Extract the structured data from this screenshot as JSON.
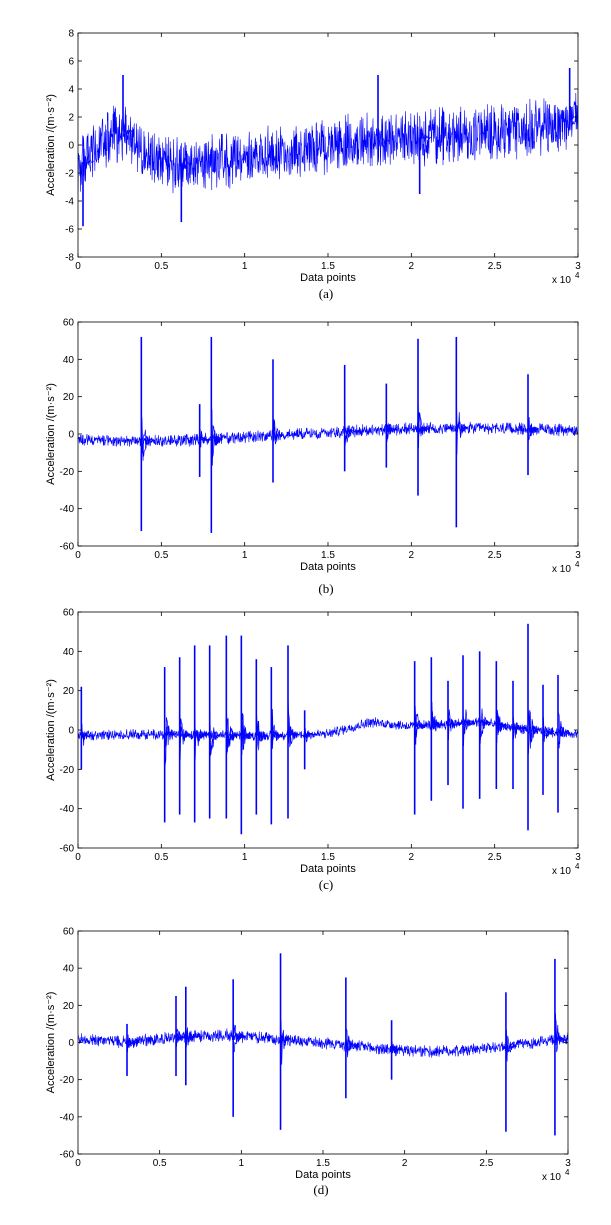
{
  "chart_data": [
    {
      "type": "line",
      "caption": "(a)",
      "xlabel": "Data points",
      "ylabel": "Acceleration /(m·s⁻²)",
      "x_multiplier": "x 10",
      "x_exponent": "4",
      "xlim": [
        0,
        3
      ],
      "ylim": [
        -8,
        8
      ],
      "xticks": [
        "0",
        "0.5",
        "1",
        "1.5",
        "2",
        "2.5",
        "3"
      ],
      "yticks": [
        "-8",
        "-6",
        "-4",
        "-2",
        "0",
        "2",
        "4",
        "6",
        "8"
      ],
      "grid": false,
      "line_color": "#0000ff",
      "series": [
        {
          "x": [
            0,
            0.1,
            0.2,
            0.27,
            0.4,
            0.5,
            0.6,
            0.7,
            0.8,
            0.9,
            1.0,
            1.2,
            1.4,
            1.6,
            1.8,
            2.0,
            2.2,
            2.4,
            2.6,
            2.8,
            2.95,
            3.0
          ],
          "y": [
            -1.5,
            -0.5,
            0.5,
            1.0,
            -0.5,
            -1.2,
            -1.4,
            -1.2,
            -1.2,
            -1.0,
            -0.8,
            -0.6,
            -0.3,
            0,
            0.3,
            0.5,
            0.6,
            0.8,
            1.0,
            1.3,
            1.8,
            2.0
          ],
          "noise_amplitude": 1.5
        }
      ],
      "spikes": [
        {
          "x": 0.03,
          "y": -5.8
        },
        {
          "x": 0.27,
          "y": 5.0
        },
        {
          "x": 0.62,
          "y": -5.5
        },
        {
          "x": 1.8,
          "y": 5.0
        },
        {
          "x": 2.05,
          "y": -3.5
        },
        {
          "x": 2.95,
          "y": 5.5
        }
      ]
    },
    {
      "type": "line",
      "caption": "(b)",
      "xlabel": "Data points",
      "ylabel": "Acceleration /(m·s⁻²)",
      "x_multiplier": "x 10",
      "x_exponent": "4",
      "xlim": [
        0,
        3
      ],
      "ylim": [
        -60,
        60
      ],
      "xticks": [
        "0",
        "0.5",
        "1",
        "1.5",
        "2",
        "2.5",
        "3"
      ],
      "yticks": [
        "-60",
        "-40",
        "-20",
        "0",
        "20",
        "40",
        "60"
      ],
      "grid": false,
      "line_color": "#0000ff",
      "series": [
        {
          "x": [
            0,
            0.5,
            1.0,
            1.5,
            2.0,
            2.5,
            3.0
          ],
          "y": [
            -3,
            -4,
            -2,
            1,
            3,
            3,
            2
          ],
          "noise_amplitude": 2.5
        }
      ],
      "spikes": [
        {
          "x": 0.38,
          "y": 52
        },
        {
          "x": 0.38,
          "y": -52
        },
        {
          "x": 0.73,
          "y": 16
        },
        {
          "x": 0.73,
          "y": -23
        },
        {
          "x": 0.8,
          "y": 52
        },
        {
          "x": 0.8,
          "y": -53
        },
        {
          "x": 1.17,
          "y": 40
        },
        {
          "x": 1.17,
          "y": -26
        },
        {
          "x": 1.6,
          "y": 37
        },
        {
          "x": 1.6,
          "y": -20
        },
        {
          "x": 1.85,
          "y": 27
        },
        {
          "x": 1.85,
          "y": -18
        },
        {
          "x": 2.04,
          "y": 51
        },
        {
          "x": 2.04,
          "y": -33
        },
        {
          "x": 2.27,
          "y": 52
        },
        {
          "x": 2.27,
          "y": -50
        },
        {
          "x": 2.7,
          "y": 32
        },
        {
          "x": 2.7,
          "y": -22
        }
      ]
    },
    {
      "type": "line",
      "caption": "(c)",
      "xlabel": "Data points",
      "ylabel": "Acceleration /(m·s⁻²)",
      "x_multiplier": "x 10",
      "x_exponent": "4",
      "xlim": [
        0,
        3
      ],
      "ylim": [
        -60,
        60
      ],
      "xticks": [
        "0",
        "0.5",
        "1",
        "1.5",
        "2",
        "2.5",
        "3"
      ],
      "yticks": [
        "-60",
        "-40",
        "-20",
        "0",
        "20",
        "40",
        "60"
      ],
      "grid": false,
      "line_color": "#0000ff",
      "series": [
        {
          "x": [
            0,
            0.5,
            1.0,
            1.5,
            1.75,
            2.0,
            2.4,
            2.7,
            3.0
          ],
          "y": [
            -3,
            -2,
            -3,
            -2,
            4,
            2,
            4,
            0,
            -2
          ],
          "noise_amplitude": 2.0
        }
      ],
      "spikes": [
        {
          "x": 0.02,
          "y": 22
        },
        {
          "x": 0.02,
          "y": -20
        },
        {
          "x": 0.52,
          "y": 32
        },
        {
          "x": 0.52,
          "y": -47
        },
        {
          "x": 0.61,
          "y": 37
        },
        {
          "x": 0.61,
          "y": -43
        },
        {
          "x": 0.7,
          "y": 43
        },
        {
          "x": 0.7,
          "y": -47
        },
        {
          "x": 0.79,
          "y": 43
        },
        {
          "x": 0.79,
          "y": -45
        },
        {
          "x": 0.89,
          "y": 48
        },
        {
          "x": 0.89,
          "y": -45
        },
        {
          "x": 0.98,
          "y": 48
        },
        {
          "x": 0.98,
          "y": -53
        },
        {
          "x": 1.07,
          "y": 36
        },
        {
          "x": 1.07,
          "y": -43
        },
        {
          "x": 1.16,
          "y": 32
        },
        {
          "x": 1.16,
          "y": -48
        },
        {
          "x": 1.26,
          "y": 43
        },
        {
          "x": 1.26,
          "y": -45
        },
        {
          "x": 1.36,
          "y": 10
        },
        {
          "x": 1.36,
          "y": -20
        },
        {
          "x": 2.02,
          "y": 35
        },
        {
          "x": 2.02,
          "y": -43
        },
        {
          "x": 2.12,
          "y": 37
        },
        {
          "x": 2.12,
          "y": -36
        },
        {
          "x": 2.22,
          "y": 25
        },
        {
          "x": 2.22,
          "y": -28
        },
        {
          "x": 2.31,
          "y": 38
        },
        {
          "x": 2.31,
          "y": -40
        },
        {
          "x": 2.41,
          "y": 40
        },
        {
          "x": 2.41,
          "y": -35
        },
        {
          "x": 2.51,
          "y": 35
        },
        {
          "x": 2.51,
          "y": -30
        },
        {
          "x": 2.61,
          "y": 25
        },
        {
          "x": 2.61,
          "y": -30
        },
        {
          "x": 2.7,
          "y": 54
        },
        {
          "x": 2.7,
          "y": -51
        },
        {
          "x": 2.79,
          "y": 23
        },
        {
          "x": 2.79,
          "y": -33
        },
        {
          "x": 2.88,
          "y": 28
        },
        {
          "x": 2.88,
          "y": -42
        }
      ]
    },
    {
      "type": "line",
      "caption": "(d)",
      "xlabel": "Data points",
      "ylabel": "Acceleration /(m·s⁻²)",
      "x_multiplier": "x 10",
      "x_exponent": "4",
      "xlim": [
        0,
        3
      ],
      "ylim": [
        -60,
        60
      ],
      "xticks": [
        "0",
        "0.5",
        "1",
        "1.5",
        "2",
        "2.5",
        "3"
      ],
      "yticks": [
        "-60",
        "-40",
        "-20",
        "0",
        "20",
        "40",
        "60"
      ],
      "grid": false,
      "line_color": "#0000ff",
      "series": [
        {
          "x": [
            0,
            0.3,
            0.6,
            0.9,
            1.2,
            1.5,
            1.8,
            2.1,
            2.4,
            2.7,
            3.0
          ],
          "y": [
            2,
            0,
            3,
            4,
            2,
            0,
            -3,
            -5,
            -4,
            -1,
            2
          ],
          "noise_amplitude": 2.5
        }
      ],
      "spikes": [
        {
          "x": 0.3,
          "y": 10
        },
        {
          "x": 0.3,
          "y": -18
        },
        {
          "x": 0.6,
          "y": 25
        },
        {
          "x": 0.6,
          "y": -18
        },
        {
          "x": 0.66,
          "y": 30
        },
        {
          "x": 0.66,
          "y": -23
        },
        {
          "x": 0.95,
          "y": 34
        },
        {
          "x": 0.95,
          "y": -40
        },
        {
          "x": 1.24,
          "y": 48
        },
        {
          "x": 1.24,
          "y": -47
        },
        {
          "x": 1.64,
          "y": 35
        },
        {
          "x": 1.64,
          "y": -30
        },
        {
          "x": 1.92,
          "y": 12
        },
        {
          "x": 1.92,
          "y": -20
        },
        {
          "x": 2.62,
          "y": 27
        },
        {
          "x": 2.62,
          "y": -48
        },
        {
          "x": 2.92,
          "y": 45
        },
        {
          "x": 2.92,
          "y": -50
        }
      ]
    }
  ]
}
